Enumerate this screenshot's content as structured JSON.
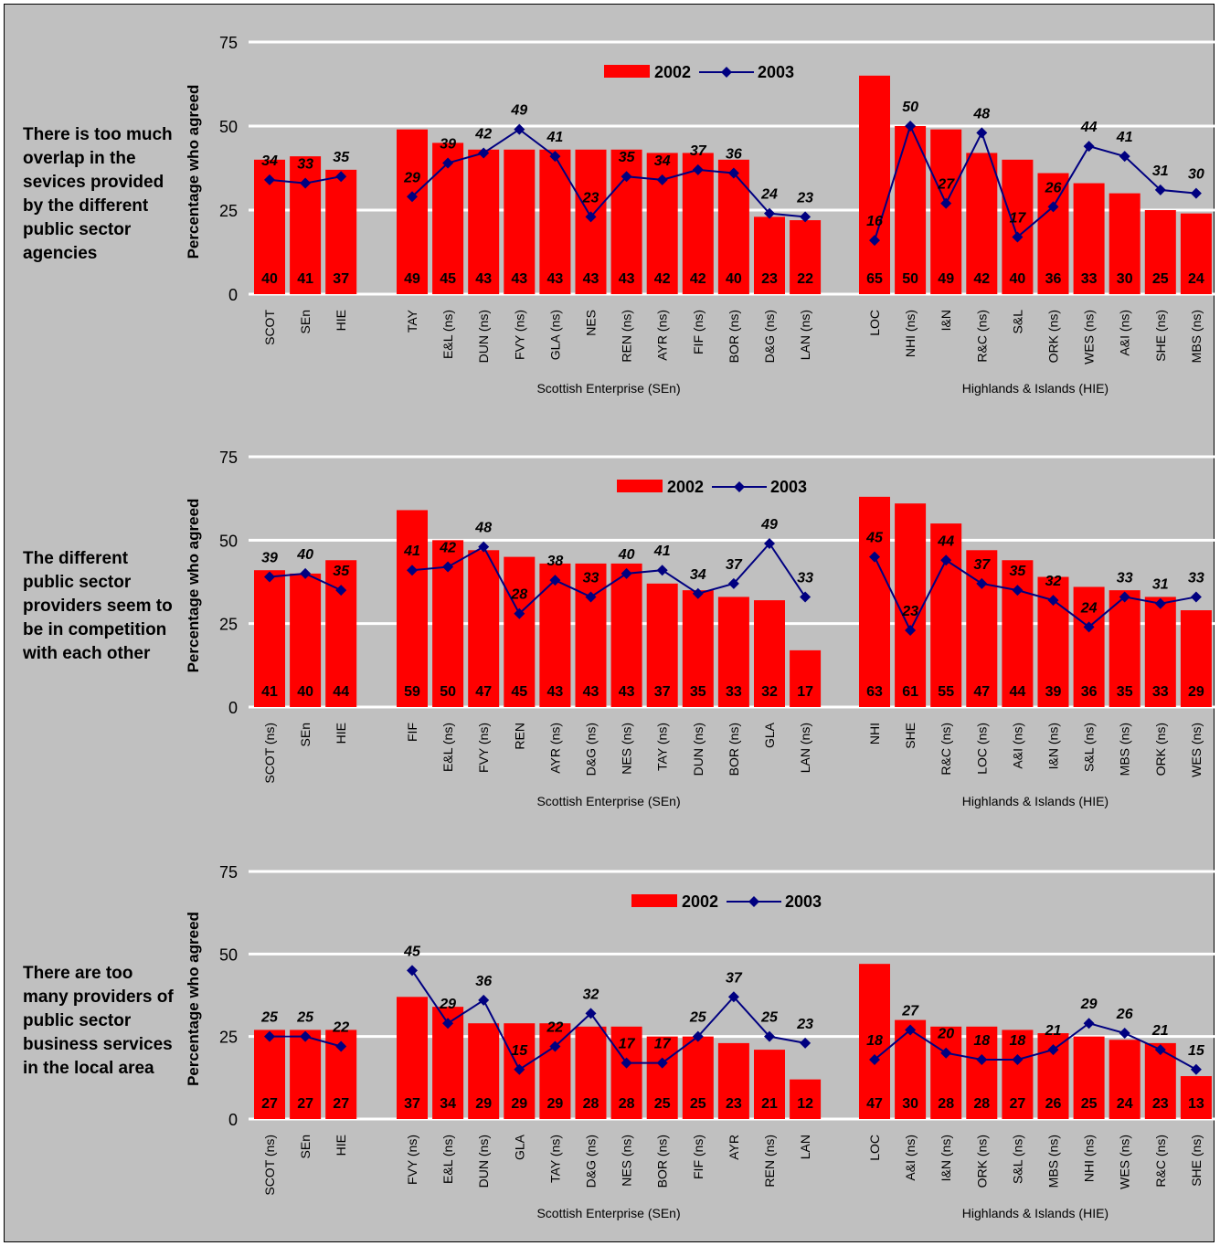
{
  "colors": {
    "bar": "#ff0000",
    "line": "#000080",
    "grid": "#ffffff",
    "background": "#c0c0c0"
  },
  "legend": {
    "bar_label": "2002",
    "line_label": "2003"
  },
  "y_axis_label": "Percentage who agreed",
  "chart_data": [
    {
      "type": "bar",
      "question": "There is too much overlap in the sevices provided by the different public sector agencies",
      "ylabel": "Percentage who agreed",
      "ylim": [
        0,
        75
      ],
      "yticks": [
        0,
        25,
        50,
        75
      ],
      "groups": [
        {
          "label": "",
          "categories": [
            "SCOT",
            "SEn",
            "HIE"
          ]
        },
        {
          "label": "Scottish Enterprise (SEn)",
          "categories": [
            "TAY",
            "E&L (ns)",
            "DUN (ns)",
            "FVY (ns)",
            "GLA (ns)",
            "NES",
            "REN (ns)",
            "AYR (ns)",
            "FIF (ns)",
            "BOR (ns)",
            "D&G (ns)",
            "LAN (ns)"
          ]
        },
        {
          "label": "Highlands & Islands (HIE)",
          "categories": [
            "LOC",
            "NHI (ns)",
            "I&N",
            "R&C (ns)",
            "S&L",
            "ORK (ns)",
            "WES (ns)",
            "A&I (ns)",
            "SHE (ns)",
            "MBS (ns)"
          ]
        }
      ],
      "series": [
        {
          "name": "2002",
          "type": "bar",
          "values": [
            40,
            41,
            37,
            49,
            45,
            43,
            43,
            43,
            43,
            43,
            42,
            42,
            40,
            23,
            22,
            65,
            50,
            49,
            42,
            40,
            36,
            33,
            30,
            25,
            24
          ]
        },
        {
          "name": "2003",
          "type": "line",
          "values": [
            34,
            33,
            35,
            29,
            39,
            42,
            49,
            41,
            23,
            35,
            34,
            37,
            36,
            24,
            23,
            16,
            50,
            27,
            48,
            17,
            26,
            44,
            41,
            31,
            30
          ]
        }
      ]
    },
    {
      "type": "bar",
      "question": "The different public sector providers seem to be in competition with each other",
      "ylabel": "Percentage who agreed",
      "ylim": [
        0,
        75
      ],
      "yticks": [
        0,
        25,
        50,
        75
      ],
      "groups": [
        {
          "label": "",
          "categories": [
            "SCOT (ns)",
            "SEn",
            "HIE"
          ]
        },
        {
          "label": "Scottish Enterprise (SEn)",
          "categories": [
            "FIF",
            "E&L (ns)",
            "FVY (ns)",
            "REN",
            "AYR (ns)",
            "D&G (ns)",
            "NES (ns)",
            "TAY (ns)",
            "DUN (ns)",
            "BOR (ns)",
            "GLA",
            "LAN (ns)"
          ]
        },
        {
          "label": "Highlands & Islands (HIE)",
          "categories": [
            "NHI",
            "SHE",
            "R&C (ns)",
            "LOC (ns)",
            "A&I (ns)",
            "I&N (ns)",
            "S&L (ns)",
            "MBS (ns)",
            "ORK (ns)",
            "WES (ns)"
          ]
        }
      ],
      "series": [
        {
          "name": "2002",
          "type": "bar",
          "values": [
            41,
            40,
            44,
            59,
            50,
            47,
            45,
            43,
            43,
            43,
            37,
            35,
            33,
            32,
            17,
            63,
            61,
            55,
            47,
            44,
            39,
            36,
            35,
            33,
            29
          ]
        },
        {
          "name": "2003",
          "type": "line",
          "values": [
            39,
            40,
            35,
            41,
            42,
            48,
            28,
            38,
            33,
            40,
            41,
            34,
            37,
            49,
            33,
            45,
            23,
            44,
            37,
            35,
            32,
            24,
            33,
            31,
            33
          ]
        }
      ]
    },
    {
      "type": "bar",
      "question": "There are too many providers of public sector business services in the local area",
      "ylabel": "Percentage who agreed",
      "ylim": [
        0,
        75
      ],
      "yticks": [
        0,
        25,
        50,
        75
      ],
      "groups": [
        {
          "label": "",
          "categories": [
            "SCOT (ns)",
            "SEn",
            "HIE"
          ]
        },
        {
          "label": "Scottish Enterprise (SEn)",
          "categories": [
            "FVY (ns)",
            "E&L (ns)",
            "DUN (ns)",
            "GLA",
            "TAY (ns)",
            "D&G (ns)",
            "NES (ns)",
            "BOR (ns)",
            "FIF (ns)",
            "AYR",
            "REN (ns)",
            "LAN"
          ]
        },
        {
          "label": "Highlands & Islands (HIE)",
          "categories": [
            "LOC",
            "A&I (ns)",
            "I&N (ns)",
            "ORK (ns)",
            "S&L (ns)",
            "MBS (ns)",
            "NHI (ns)",
            "WES (ns)",
            "R&C (ns)",
            "SHE (ns)"
          ]
        }
      ],
      "series": [
        {
          "name": "2002",
          "type": "bar",
          "values": [
            27,
            27,
            27,
            37,
            34,
            29,
            29,
            29,
            28,
            28,
            25,
            25,
            23,
            21,
            12,
            47,
            30,
            28,
            28,
            27,
            26,
            25,
            24,
            23,
            13
          ]
        },
        {
          "name": "2003",
          "type": "line",
          "values": [
            25,
            25,
            22,
            45,
            29,
            36,
            15,
            22,
            32,
            17,
            17,
            25,
            37,
            25,
            23,
            18,
            27,
            20,
            18,
            18,
            21,
            29,
            26,
            21,
            15
          ]
        }
      ]
    }
  ]
}
